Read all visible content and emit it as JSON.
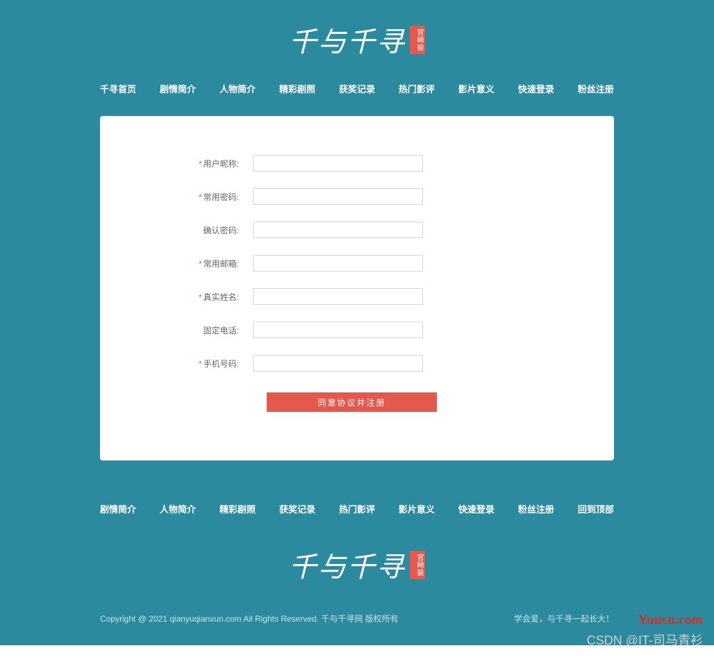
{
  "colors": {
    "teal_bg": "#2c8a9e",
    "accent_red": "#e4594d",
    "white": "#ffffff",
    "label_text": "#666666",
    "input_border": "#d5d5d5",
    "footer_text": "#c9e4ea",
    "watermark_red": "#d72f1f",
    "watermark_grey": "#d0d0d0"
  },
  "logo": {
    "main_text": "千与千寻",
    "seal_text": "宫崎骏"
  },
  "nav": {
    "items": [
      "千寻首页",
      "剧情简介",
      "人物简介",
      "精彩剧照",
      "获奖记录",
      "热门影评",
      "影片意义",
      "快速登录",
      "粉丝注册"
    ]
  },
  "form": {
    "fields": [
      {
        "label": "用户昵称:",
        "required": true,
        "value": ""
      },
      {
        "label": "常用密码:",
        "required": true,
        "value": ""
      },
      {
        "label": "确认密码:",
        "required": false,
        "value": ""
      },
      {
        "label": "常用邮箱:",
        "required": true,
        "value": ""
      },
      {
        "label": "真实姓名:",
        "required": true,
        "value": ""
      },
      {
        "label": "固定电话:",
        "required": false,
        "value": ""
      },
      {
        "label": "手机号码:",
        "required": true,
        "value": ""
      }
    ],
    "required_marker": "*",
    "submit_label": "同意协议并注册"
  },
  "footer_nav": {
    "items": [
      "剧情简介",
      "人物简介",
      "精彩剧照",
      "获奖记录",
      "热门影评",
      "影片意义",
      "快速登录",
      "粉丝注册",
      "回到顶部"
    ]
  },
  "footer": {
    "copyright": "Copyright @ 2021 qianyuqianxun.com All Rights Reserved. 千与千寻网 版权所有",
    "slogan": "学会爱，与千寻一起长大！"
  },
  "watermarks": {
    "site": "Yuucn.com",
    "author": "CSDN @IT-司马青衫"
  }
}
